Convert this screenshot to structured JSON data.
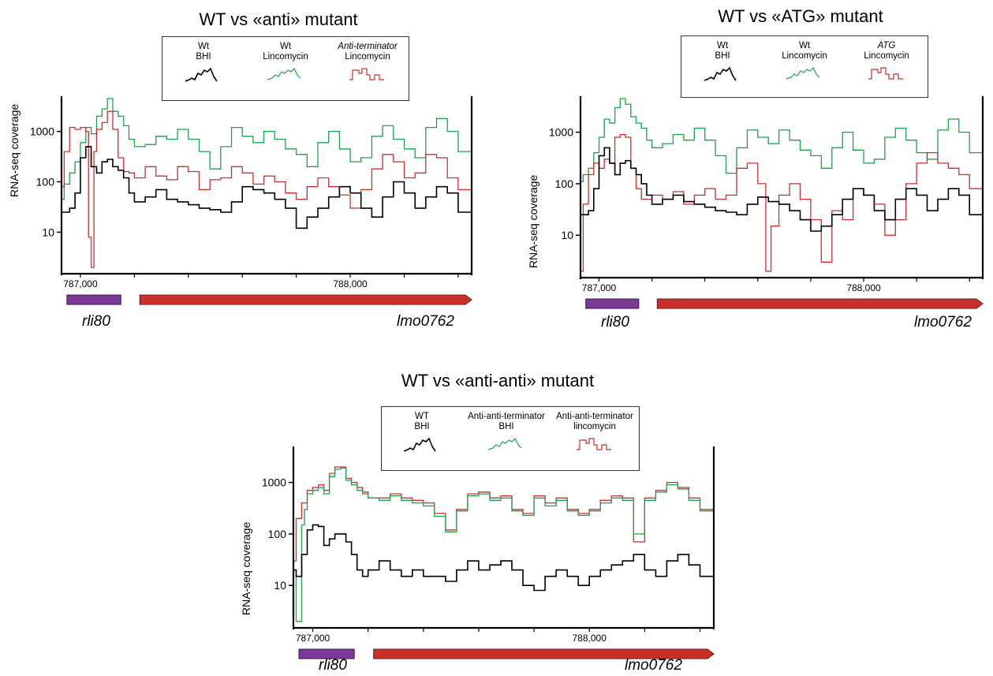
{
  "chart_data": [
    {
      "type": "line",
      "title": "WT vs «anti» mutant",
      "ylabel": "RNA-seq coverage",
      "yscale": "log",
      "yticks": [
        "10",
        "100",
        "1000"
      ],
      "xticks": [
        "787,000",
        "788,000"
      ],
      "xlim": [
        786930,
        788450
      ],
      "ylim": [
        1.5,
        5000
      ],
      "legend": [
        {
          "line1": "Wt",
          "line2": "BHI",
          "italic": false,
          "color": "#000000"
        },
        {
          "line1": "Wt",
          "line2": "Lincomycin",
          "italic": false,
          "color": "#1aa34a"
        },
        {
          "line1": "Anti-terminator",
          "line2": "Lincomycin",
          "italic": true,
          "color": "#d22b2b"
        }
      ],
      "genes": [
        {
          "name": "rli80",
          "start": 786950,
          "end": 787150,
          "color": "#7b3a96",
          "arrow": false
        },
        {
          "name": "lmo0762",
          "start": 787220,
          "end": 788450,
          "color": "#c9302c",
          "arrow": true
        }
      ],
      "series": [
        {
          "color": "#1aa34a",
          "x": [
            786930,
            786940,
            786960,
            786980,
            787000,
            787020,
            787040,
            787060,
            787080,
            787100,
            787120,
            787140,
            787160,
            787180,
            787200,
            787240,
            787280,
            787320,
            787360,
            787400,
            787440,
            787480,
            787520,
            787560,
            787600,
            787640,
            787680,
            787720,
            787760,
            787800,
            787840,
            787880,
            787920,
            787960,
            788000,
            788040,
            788080,
            788120,
            788160,
            788200,
            788240,
            788280,
            788320,
            788360,
            788400,
            788450
          ],
          "y": [
            45,
            90,
            150,
            250,
            600,
            1200,
            900,
            2000,
            2800,
            4500,
            2500,
            2000,
            1300,
            700,
            500,
            550,
            800,
            700,
            1100,
            700,
            400,
            180,
            500,
            1200,
            800,
            600,
            1000,
            700,
            450,
            350,
            200,
            600,
            1000,
            450,
            250,
            300,
            800,
            1300,
            700,
            450,
            300,
            1200,
            1800,
            1000,
            400,
            420
          ]
        },
        {
          "color": "#d22b2b",
          "x": [
            786930,
            786940,
            786960,
            786980,
            787000,
            787020,
            787030,
            787040,
            787050,
            787060,
            787080,
            787100,
            787120,
            787140,
            787160,
            787180,
            787200,
            787240,
            787280,
            787320,
            787360,
            787400,
            787440,
            787480,
            787520,
            787560,
            787600,
            787640,
            787680,
            787720,
            787760,
            787800,
            787840,
            787880,
            787920,
            787960,
            788000,
            788040,
            788080,
            788120,
            788160,
            788200,
            788240,
            788280,
            788320,
            788360,
            788400,
            788450
          ],
          "y": [
            80,
            400,
            1200,
            1100,
            1200,
            1000,
            8,
            2,
            400,
            1100,
            1500,
            2500,
            1100,
            300,
            160,
            150,
            120,
            200,
            130,
            110,
            200,
            160,
            70,
            110,
            120,
            200,
            150,
            90,
            130,
            100,
            60,
            45,
            80,
            120,
            80,
            55,
            30,
            70,
            180,
            350,
            250,
            120,
            150,
            350,
            300,
            120,
            70,
            70
          ]
        },
        {
          "color": "#000000",
          "x": [
            786930,
            786960,
            786980,
            787000,
            787020,
            787040,
            787060,
            787080,
            787100,
            787120,
            787140,
            787160,
            787180,
            787200,
            787240,
            787280,
            787320,
            787360,
            787400,
            787440,
            787480,
            787520,
            787560,
            787600,
            787640,
            787680,
            787720,
            787760,
            787800,
            787840,
            787880,
            787920,
            787960,
            788000,
            788040,
            788080,
            788120,
            788160,
            788200,
            788240,
            788280,
            788320,
            788360,
            788400,
            788450
          ],
          "y": [
            25,
            30,
            60,
            300,
            500,
            200,
            150,
            250,
            280,
            200,
            170,
            120,
            60,
            40,
            50,
            70,
            45,
            40,
            35,
            30,
            28,
            25,
            40,
            80,
            70,
            60,
            45,
            30,
            12,
            20,
            30,
            50,
            80,
            60,
            30,
            20,
            50,
            100,
            60,
            30,
            50,
            80,
            60,
            25,
            30
          ]
        }
      ]
    },
    {
      "type": "line",
      "title": "WT vs «ATG» mutant",
      "ylabel": "RNA-seq coverage",
      "yscale": "log",
      "yticks": [
        "10",
        "100",
        "1000"
      ],
      "xticks": [
        "787,000",
        "788,000"
      ],
      "xlim": [
        786930,
        788450
      ],
      "ylim": [
        1.5,
        5000
      ],
      "legend": [
        {
          "line1": "Wt",
          "line2": "BHI",
          "italic": false,
          "color": "#000000"
        },
        {
          "line1": "Wt",
          "line2": "Lincomycin",
          "italic": false,
          "color": "#1aa34a"
        },
        {
          "line1": "ATG",
          "line2": "Lincomycin",
          "italic": true,
          "color": "#d22b2b"
        }
      ],
      "genes": [
        {
          "name": "rli80",
          "start": 786950,
          "end": 787150,
          "color": "#7b3a96",
          "arrow": false
        },
        {
          "name": "lmo0762",
          "start": 787220,
          "end": 788450,
          "color": "#c9302c",
          "arrow": true
        }
      ],
      "series": [
        {
          "color": "#1aa34a",
          "x": [
            786930,
            786940,
            786960,
            786980,
            787000,
            787020,
            787040,
            787060,
            787080,
            787100,
            787120,
            787140,
            787160,
            787180,
            787200,
            787240,
            787280,
            787320,
            787360,
            787400,
            787440,
            787480,
            787520,
            787560,
            787600,
            787640,
            787680,
            787720,
            787760,
            787800,
            787840,
            787880,
            787920,
            787960,
            788000,
            788040,
            788080,
            788120,
            788160,
            788200,
            788240,
            788280,
            788320,
            788360,
            788400,
            788450
          ],
          "y": [
            110,
            150,
            200,
            400,
            800,
            1800,
            1500,
            3000,
            4500,
            3500,
            2000,
            1500,
            1200,
            700,
            500,
            600,
            900,
            700,
            1200,
            700,
            350,
            160,
            500,
            1100,
            800,
            600,
            1100,
            700,
            450,
            350,
            200,
            500,
            1000,
            450,
            250,
            300,
            800,
            1200,
            700,
            400,
            300,
            1100,
            1800,
            1000,
            400,
            420
          ]
        },
        {
          "color": "#d22b2b",
          "x": [
            786930,
            786940,
            786960,
            786980,
            787000,
            787020,
            787040,
            787060,
            787080,
            787100,
            787120,
            787140,
            787160,
            787180,
            787200,
            787240,
            787280,
            787320,
            787360,
            787400,
            787440,
            787480,
            787520,
            787560,
            787600,
            787630,
            787650,
            787680,
            787720,
            787760,
            787800,
            787840,
            787880,
            787920,
            787960,
            788000,
            788040,
            788080,
            788120,
            788160,
            788200,
            788240,
            788280,
            788320,
            788360,
            788400,
            788450
          ],
          "y": [
            2,
            40,
            150,
            250,
            200,
            300,
            250,
            800,
            900,
            800,
            200,
            80,
            50,
            50,
            60,
            50,
            70,
            40,
            60,
            80,
            50,
            60,
            200,
            250,
            100,
            2,
            15,
            60,
            100,
            50,
            20,
            3,
            30,
            20,
            80,
            60,
            40,
            10,
            20,
            100,
            250,
            400,
            250,
            200,
            150,
            80,
            80
          ]
        },
        {
          "color": "#000000",
          "x": [
            786930,
            786960,
            786980,
            787000,
            787020,
            787040,
            787060,
            787080,
            787100,
            787120,
            787140,
            787160,
            787180,
            787200,
            787240,
            787280,
            787320,
            787360,
            787400,
            787440,
            787480,
            787520,
            787560,
            787600,
            787640,
            787680,
            787720,
            787760,
            787800,
            787840,
            787880,
            787920,
            787960,
            788000,
            788040,
            788080,
            788120,
            788160,
            788200,
            788240,
            788280,
            788320,
            788360,
            788400,
            788450
          ],
          "y": [
            25,
            30,
            80,
            350,
            500,
            250,
            150,
            250,
            280,
            200,
            150,
            100,
            60,
            40,
            50,
            60,
            45,
            40,
            35,
            30,
            28,
            25,
            40,
            55,
            45,
            40,
            30,
            20,
            12,
            15,
            25,
            50,
            80,
            60,
            30,
            20,
            50,
            80,
            60,
            30,
            50,
            80,
            60,
            25,
            30
          ]
        }
      ]
    },
    {
      "type": "line",
      "title": "WT vs «anti-anti» mutant",
      "ylabel": "RNA-seq coverage",
      "yscale": "log",
      "yticks": [
        "10",
        "100",
        "1000"
      ],
      "xticks": [
        "787,000",
        "788,000"
      ],
      "xlim": [
        786930,
        788450
      ],
      "ylim": [
        1.5,
        5000
      ],
      "legend": [
        {
          "line1": "WT",
          "line2": "BHI",
          "italic": false,
          "color": "#000000"
        },
        {
          "line1": "Anti-anti-terminator",
          "line2": "BHI",
          "italic": false,
          "color": "#1aa34a"
        },
        {
          "line1": "Anti-anti-terminator",
          "line2": "lincomycin",
          "italic": false,
          "color": "#d22b2b"
        }
      ],
      "genes": [
        {
          "name": "rli80",
          "start": 786950,
          "end": 787150,
          "color": "#7b3a96",
          "arrow": false
        },
        {
          "name": "lmo0762",
          "start": 787220,
          "end": 788450,
          "color": "#c9302c",
          "arrow": true
        }
      ],
      "series": [
        {
          "color": "#d22b2b",
          "x": [
            786930,
            786940,
            786960,
            786980,
            787000,
            787020,
            787040,
            787060,
            787080,
            787100,
            787120,
            787140,
            787160,
            787180,
            787200,
            787240,
            787280,
            787320,
            787360,
            787400,
            787440,
            787480,
            787520,
            787560,
            787600,
            787640,
            787680,
            787720,
            787760,
            787800,
            787840,
            787880,
            787920,
            787960,
            788000,
            788040,
            788080,
            788120,
            788160,
            788200,
            788240,
            788280,
            788320,
            788360,
            788400,
            788450
          ],
          "y": [
            30,
            200,
            400,
            700,
            800,
            900,
            700,
            1500,
            2000,
            2000,
            1200,
            1000,
            800,
            650,
            500,
            500,
            600,
            500,
            450,
            400,
            250,
            120,
            300,
            600,
            650,
            500,
            550,
            300,
            250,
            550,
            400,
            500,
            300,
            250,
            300,
            450,
            550,
            500,
            70,
            500,
            700,
            1000,
            800,
            500,
            300,
            300
          ]
        },
        {
          "color": "#1aa34a",
          "x": [
            786930,
            786940,
            786960,
            786970,
            786980,
            787000,
            787020,
            787040,
            787060,
            787080,
            787100,
            787120,
            787140,
            787160,
            787180,
            787200,
            787240,
            787280,
            787320,
            787360,
            787400,
            787440,
            787480,
            787520,
            787560,
            787600,
            787640,
            787680,
            787720,
            787760,
            787800,
            787840,
            787880,
            787920,
            787960,
            788000,
            788040,
            788080,
            788120,
            788160,
            788200,
            788240,
            788280,
            788320,
            788360,
            788400,
            788450
          ],
          "y": [
            20,
            2,
            150,
            300,
            600,
            700,
            800,
            600,
            1300,
            1800,
            1900,
            1100,
            900,
            700,
            600,
            500,
            450,
            550,
            450,
            400,
            350,
            220,
            110,
            280,
            550,
            600,
            450,
            500,
            280,
            230,
            500,
            350,
            450,
            280,
            230,
            280,
            400,
            500,
            450,
            100,
            450,
            650,
            900,
            750,
            450,
            280,
            280
          ]
        },
        {
          "color": "#000000",
          "x": [
            786930,
            786940,
            786960,
            786980,
            787000,
            787020,
            787040,
            787060,
            787080,
            787100,
            787120,
            787140,
            787160,
            787180,
            787200,
            787240,
            787280,
            787320,
            787360,
            787400,
            787440,
            787480,
            787520,
            787560,
            787600,
            787640,
            787680,
            787720,
            787760,
            787800,
            787840,
            787880,
            787920,
            787960,
            788000,
            788040,
            788080,
            788120,
            788160,
            788200,
            788240,
            788280,
            788320,
            788360,
            788400,
            788450
          ],
          "y": [
            20,
            15,
            40,
            120,
            150,
            140,
            60,
            80,
            100,
            100,
            70,
            40,
            20,
            15,
            20,
            30,
            20,
            15,
            20,
            15,
            15,
            12,
            20,
            30,
            20,
            25,
            30,
            20,
            10,
            8,
            15,
            20,
            15,
            10,
            15,
            20,
            25,
            30,
            40,
            20,
            15,
            30,
            40,
            25,
            15,
            20
          ]
        }
      ]
    }
  ]
}
